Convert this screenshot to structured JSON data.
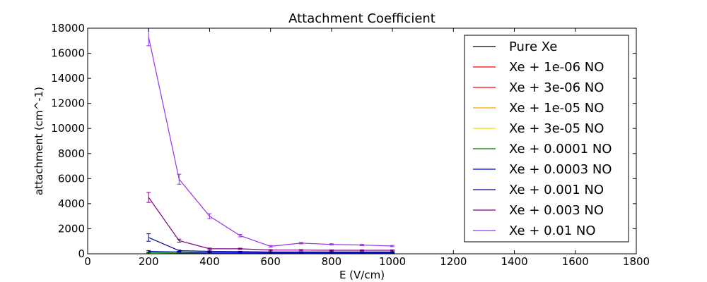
{
  "chart_data": {
    "type": "line",
    "title": "Attachment Coefficient",
    "xlabel": "E (V/cm)",
    "ylabel": "attachment (cm^-1)",
    "xlim": [
      0,
      1800
    ],
    "ylim": [
      0,
      18000
    ],
    "xticks": [
      "0",
      "200",
      "400",
      "600",
      "800",
      "1000",
      "1200",
      "1400",
      "1600",
      "1800"
    ],
    "yticks": [
      "0",
      "2000",
      "4000",
      "6000",
      "8000",
      "10000",
      "12000",
      "14000",
      "16000",
      "18000"
    ],
    "grid": false,
    "legend_position": "top-right",
    "x": [
      200,
      300,
      400,
      500,
      600,
      700,
      800,
      900,
      1000
    ],
    "series": [
      {
        "name": "Pure Xe",
        "color": "#000000",
        "values": [
          20,
          10,
          5,
          5,
          5,
          5,
          5,
          5,
          5
        ],
        "errors": [
          10,
          5,
          5,
          5,
          5,
          5,
          5,
          5,
          5
        ]
      },
      {
        "name": "Xe + 1e-06 NO",
        "color": "#ff0000",
        "values": [
          25,
          12,
          8,
          6,
          6,
          6,
          6,
          6,
          6
        ],
        "errors": [
          10,
          5,
          5,
          5,
          5,
          5,
          5,
          5,
          5
        ]
      },
      {
        "name": "Xe + 3e-06 NO",
        "color": "#ff0000",
        "values": [
          30,
          15,
          10,
          8,
          8,
          8,
          8,
          8,
          8
        ],
        "errors": [
          10,
          5,
          5,
          5,
          5,
          5,
          5,
          5,
          5
        ]
      },
      {
        "name": "Xe + 1e-05 NO",
        "color": "#ffa500",
        "values": [
          40,
          20,
          15,
          12,
          12,
          12,
          12,
          12,
          12
        ],
        "errors": [
          15,
          8,
          5,
          5,
          5,
          5,
          5,
          5,
          5
        ]
      },
      {
        "name": "Xe + 3e-05 NO",
        "color": "#ffd700",
        "values": [
          60,
          30,
          20,
          18,
          18,
          18,
          18,
          18,
          18
        ],
        "errors": [
          20,
          10,
          5,
          5,
          5,
          5,
          5,
          5,
          5
        ]
      },
      {
        "name": "Xe + 0.0001 NO",
        "color": "#008000",
        "values": [
          100,
          60,
          40,
          35,
          35,
          35,
          35,
          35,
          35
        ],
        "errors": [
          30,
          15,
          10,
          10,
          10,
          10,
          10,
          10,
          10
        ]
      },
      {
        "name": "Xe + 0.0003 NO",
        "color": "#0000cd",
        "values": [
          200,
          150,
          100,
          90,
          80,
          80,
          80,
          80,
          80
        ],
        "errors": [
          60,
          30,
          20,
          15,
          15,
          15,
          15,
          15,
          15
        ]
      },
      {
        "name": "Xe + 0.001 NO",
        "color": "#00008b",
        "values": [
          1300,
          250,
          200,
          180,
          150,
          150,
          150,
          150,
          150
        ],
        "errors": [
          300,
          50,
          30,
          20,
          20,
          20,
          20,
          20,
          20
        ]
      },
      {
        "name": "Xe + 0.003 NO",
        "color": "#800080",
        "values": [
          4500,
          1050,
          400,
          400,
          300,
          300,
          280,
          280,
          280
        ],
        "errors": [
          400,
          120,
          60,
          50,
          40,
          40,
          40,
          40,
          40
        ]
      },
      {
        "name": "Xe + 0.01 NO",
        "color": "#9b30e8",
        "values": [
          17300,
          5950,
          3000,
          1450,
          600,
          850,
          750,
          700,
          620
        ],
        "errors": [
          700,
          400,
          200,
          100,
          60,
          60,
          50,
          50,
          50
        ]
      }
    ]
  }
}
